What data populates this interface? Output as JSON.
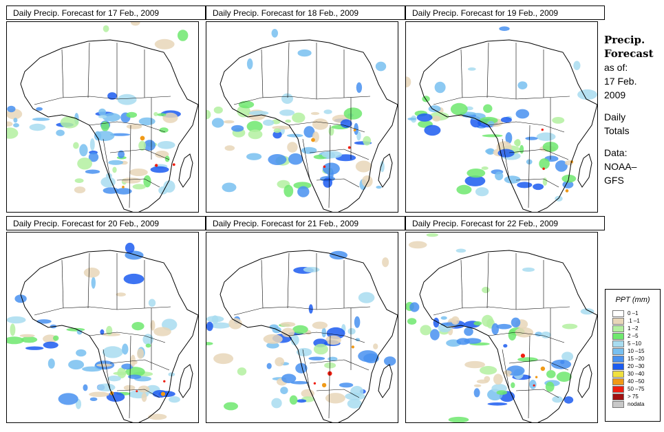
{
  "panels": [
    {
      "title": "Daily Precip. Forecast for  17 Feb., 2009"
    },
    {
      "title": "Daily Precip. Forecast for  18 Feb., 2009"
    },
    {
      "title": "Daily Precip. Forecast for  19 Feb., 2009"
    },
    {
      "title": "Daily Precip. Forecast for  20 Feb., 2009"
    },
    {
      "title": "Daily Precip. Forecast for  21 Feb., 2009"
    },
    {
      "title": "Daily Precip. Forecast for  22 Feb., 2009"
    }
  ],
  "side": {
    "heading1": "Precip.",
    "heading2": "Forecast",
    "asof": "as of:",
    "date1": "17 Feb.",
    "date2": "2009",
    "daily1": "Daily",
    "daily2": "Totals",
    "data1": "Data:",
    "data2": "NOAA–",
    "data3": "GFS"
  },
  "legend": {
    "title": "PPT (mm)",
    "items": [
      {
        "label": "0 –1",
        "color": "#ffffff"
      },
      {
        "label": ".1 –1",
        "color": "#e8d6b8"
      },
      {
        "label": "1 –2",
        "color": "#b3f0a0"
      },
      {
        "label": "2 –5",
        "color": "#6ee86e"
      },
      {
        "label": "5 –10",
        "color": "#a8dcf0"
      },
      {
        "label": "10 –15",
        "color": "#78c0f0"
      },
      {
        "label": "15 –20",
        "color": "#4890f0"
      },
      {
        "label": "20 –30",
        "color": "#1c5cf0"
      },
      {
        "label": "30 –40",
        "color": "#f0e040"
      },
      {
        "label": "40 –50",
        "color": "#f09a18"
      },
      {
        "label": "50 –75",
        "color": "#f01e10"
      },
      {
        "label": "> 75",
        "color": "#a01010"
      },
      {
        "label": "nodata",
        "color": "#c8c8c8"
      }
    ]
  }
}
